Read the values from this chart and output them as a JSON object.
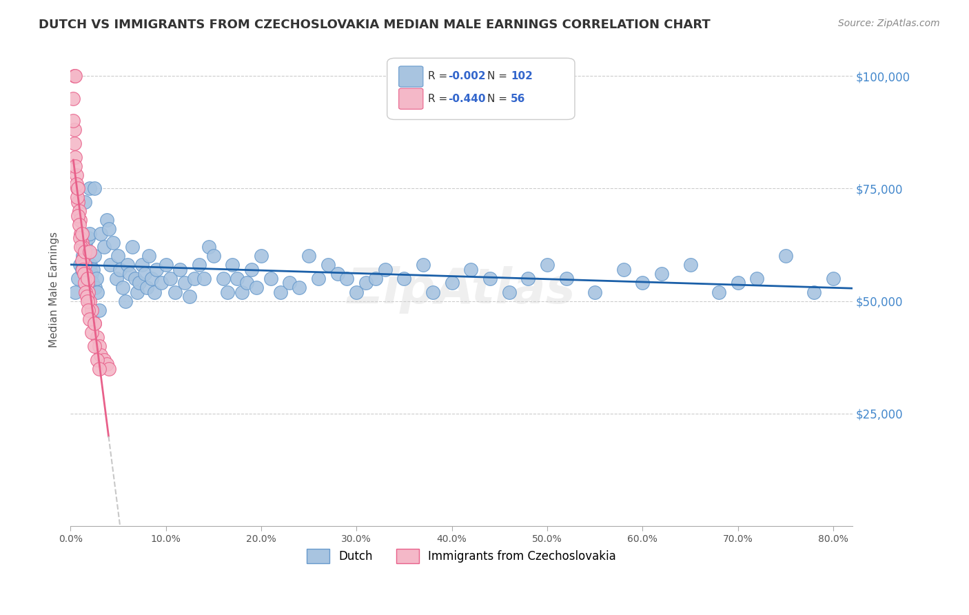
{
  "title": "DUTCH VS IMMIGRANTS FROM CZECHOSLOVAKIA MEDIAN MALE EARNINGS CORRELATION CHART",
  "source": "Source: ZipAtlas.com",
  "ylabel": "Median Male Earnings",
  "xlabel_start": "0.0%",
  "xlabel_end": "80.0%",
  "yticks": [
    0,
    25000,
    50000,
    75000,
    100000
  ],
  "ytick_labels": [
    "",
    "$25,000",
    "$50,000",
    "$75,000",
    "$100,000"
  ],
  "ylim": [
    0,
    105000
  ],
  "xlim": [
    0,
    0.82
  ],
  "blue_R": -0.002,
  "blue_N": 102,
  "pink_R": -0.44,
  "pink_N": 56,
  "blue_label": "Dutch",
  "pink_label": "Immigrants from Czechoslovakia",
  "blue_color": "#a8c4e0",
  "blue_edge": "#6699cc",
  "pink_color": "#f4b8c8",
  "pink_edge": "#e8608a",
  "blue_line_color": "#1a5fa8",
  "pink_line_color": "#e8608a",
  "trend_ext_color": "#c8c8c8",
  "watermark": "ZipAtlas",
  "title_color": "#333333",
  "axis_color": "#4488cc",
  "legend_R_color": "#3366cc",
  "legend_N_color": "#3366cc",
  "background": "#ffffff",
  "grid_color": "#cccccc",
  "blue_x": [
    0.005,
    0.008,
    0.01,
    0.012,
    0.013,
    0.015,
    0.016,
    0.017,
    0.018,
    0.019,
    0.02,
    0.021,
    0.022,
    0.023,
    0.024,
    0.025,
    0.026,
    0.027,
    0.028,
    0.03,
    0.032,
    0.035,
    0.038,
    0.04,
    0.042,
    0.045,
    0.048,
    0.05,
    0.052,
    0.055,
    0.058,
    0.06,
    0.062,
    0.065,
    0.068,
    0.07,
    0.072,
    0.075,
    0.078,
    0.08,
    0.082,
    0.085,
    0.088,
    0.09,
    0.095,
    0.1,
    0.105,
    0.11,
    0.115,
    0.12,
    0.125,
    0.13,
    0.135,
    0.14,
    0.145,
    0.15,
    0.16,
    0.165,
    0.17,
    0.175,
    0.18,
    0.185,
    0.19,
    0.195,
    0.2,
    0.21,
    0.22,
    0.23,
    0.24,
    0.25,
    0.26,
    0.27,
    0.28,
    0.29,
    0.3,
    0.31,
    0.32,
    0.33,
    0.35,
    0.37,
    0.38,
    0.4,
    0.42,
    0.44,
    0.46,
    0.48,
    0.5,
    0.52,
    0.55,
    0.58,
    0.6,
    0.62,
    0.65,
    0.68,
    0.7,
    0.72,
    0.75,
    0.78,
    0.8,
    0.02,
    0.015,
    0.025
  ],
  "blue_y": [
    52000,
    55000,
    58000,
    57000,
    60000,
    62000,
    63000,
    59000,
    61000,
    64000,
    65000,
    58000,
    56000,
    54000,
    57000,
    60000,
    53000,
    55000,
    52000,
    48000,
    65000,
    62000,
    68000,
    66000,
    58000,
    63000,
    55000,
    60000,
    57000,
    53000,
    50000,
    58000,
    56000,
    62000,
    55000,
    52000,
    54000,
    58000,
    56000,
    53000,
    60000,
    55000,
    52000,
    57000,
    54000,
    58000,
    55000,
    52000,
    57000,
    54000,
    51000,
    55000,
    58000,
    55000,
    62000,
    60000,
    55000,
    52000,
    58000,
    55000,
    52000,
    54000,
    57000,
    53000,
    60000,
    55000,
    52000,
    54000,
    53000,
    60000,
    55000,
    58000,
    56000,
    55000,
    52000,
    54000,
    55000,
    57000,
    55000,
    58000,
    52000,
    54000,
    57000,
    55000,
    52000,
    55000,
    58000,
    55000,
    52000,
    57000,
    54000,
    56000,
    58000,
    52000,
    54000,
    55000,
    60000,
    52000,
    55000,
    75000,
    72000,
    75000
  ],
  "pink_x": [
    0.003,
    0.004,
    0.005,
    0.006,
    0.007,
    0.008,
    0.009,
    0.01,
    0.011,
    0.012,
    0.013,
    0.014,
    0.015,
    0.016,
    0.017,
    0.018,
    0.019,
    0.02,
    0.022,
    0.025,
    0.028,
    0.03,
    0.032,
    0.035,
    0.038,
    0.04,
    0.003,
    0.004,
    0.005,
    0.006,
    0.007,
    0.008,
    0.009,
    0.01,
    0.011,
    0.012,
    0.013,
    0.014,
    0.015,
    0.016,
    0.017,
    0.018,
    0.019,
    0.02,
    0.022,
    0.025,
    0.028,
    0.03,
    0.004,
    0.005,
    0.015,
    0.02,
    0.008,
    0.012,
    0.018,
    0.025
  ],
  "pink_y": [
    95000,
    88000,
    82000,
    78000,
    75000,
    72000,
    70000,
    68000,
    65000,
    63000,
    62000,
    60000,
    58000,
    56000,
    55000,
    54000,
    52000,
    50000,
    48000,
    45000,
    42000,
    40000,
    38000,
    37000,
    36000,
    35000,
    90000,
    85000,
    80000,
    76000,
    73000,
    69000,
    67000,
    64000,
    62000,
    59000,
    57000,
    56000,
    54000,
    52000,
    51000,
    50000,
    48000,
    46000,
    43000,
    40000,
    37000,
    35000,
    100000,
    100000,
    61000,
    61000,
    75000,
    65000,
    55000,
    45000
  ]
}
